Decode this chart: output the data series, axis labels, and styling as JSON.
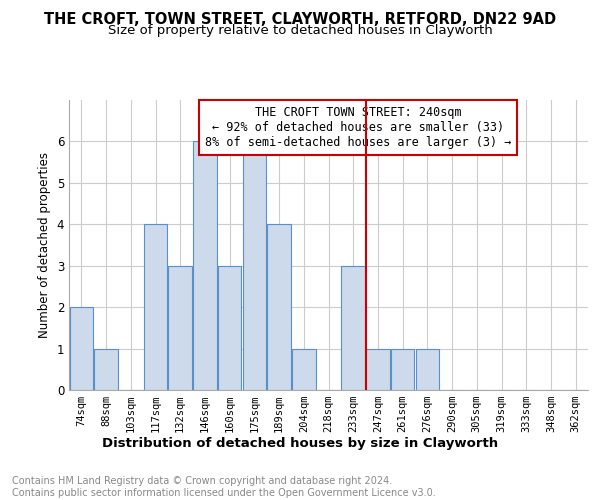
{
  "title": "THE CROFT, TOWN STREET, CLAYWORTH, RETFORD, DN22 9AD",
  "subtitle": "Size of property relative to detached houses in Clayworth",
  "xlabel": "Distribution of detached houses by size in Clayworth",
  "ylabel": "Number of detached properties",
  "categories": [
    "74sqm",
    "88sqm",
    "103sqm",
    "117sqm",
    "132sqm",
    "146sqm",
    "160sqm",
    "175sqm",
    "189sqm",
    "204sqm",
    "218sqm",
    "233sqm",
    "247sqm",
    "261sqm",
    "276sqm",
    "290sqm",
    "305sqm",
    "319sqm",
    "333sqm",
    "348sqm",
    "362sqm"
  ],
  "values": [
    2,
    1,
    0,
    4,
    3,
    6,
    3,
    6,
    4,
    1,
    0,
    3,
    1,
    1,
    1,
    0,
    0,
    0,
    0,
    0,
    0
  ],
  "bar_color": "#ccdaeb",
  "bar_edge_color": "#5b8fc9",
  "vline_position": 12,
  "vline_color": "#cc0000",
  "annotation_text": "THE CROFT TOWN STREET: 240sqm\n← 92% of detached houses are smaller (33)\n8% of semi-detached houses are larger (3) →",
  "annotation_box_color": "#cc0000",
  "ylim": [
    0,
    7
  ],
  "yticks": [
    0,
    1,
    2,
    3,
    4,
    5,
    6
  ],
  "footer_text": "Contains HM Land Registry data © Crown copyright and database right 2024.\nContains public sector information licensed under the Open Government Licence v3.0.",
  "title_fontsize": 10.5,
  "subtitle_fontsize": 9.5,
  "xlabel_fontsize": 9.5,
  "ylabel_fontsize": 8.5,
  "tick_fontsize": 7.5,
  "annot_fontsize": 8.5,
  "footer_fontsize": 7,
  "background_color": "#ffffff",
  "grid_color": "#cccccc"
}
